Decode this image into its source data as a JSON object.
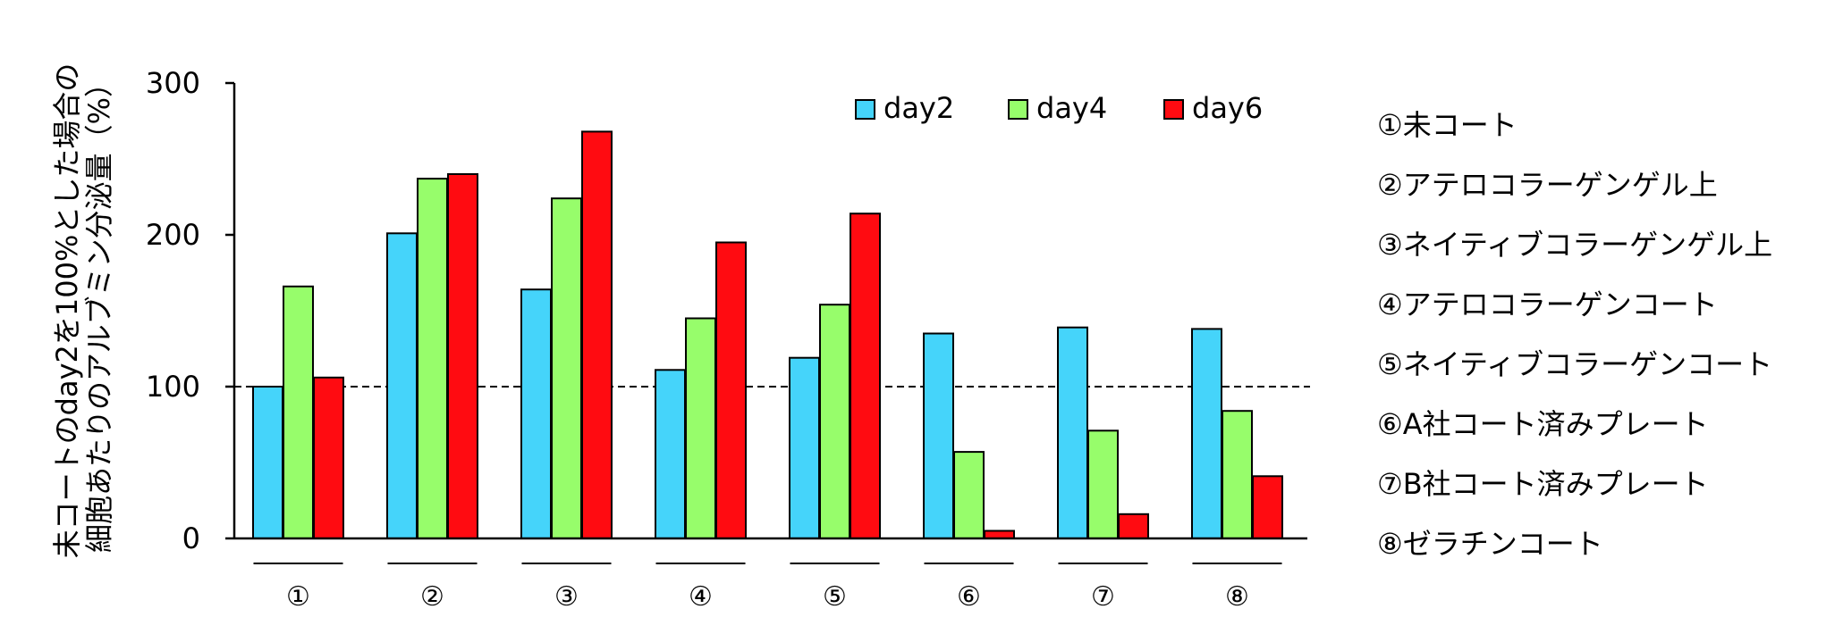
{
  "chart_data": {
    "type": "bar",
    "ylabel_lines": [
      "未コートのday2を100%とした場合の",
      "細胞あたりのアルブミン分泌量（%）"
    ],
    "ylim": [
      0,
      300
    ],
    "yticks": [
      0,
      100,
      200,
      300
    ],
    "reference_line": 100,
    "categories": [
      "①",
      "②",
      "③",
      "④",
      "⑤",
      "⑥",
      "⑦",
      "⑧"
    ],
    "series": [
      {
        "name": "day2",
        "color": "#45d4fa",
        "values": [
          100,
          201,
          164,
          111,
          119,
          135,
          139,
          138
        ]
      },
      {
        "name": "day4",
        "color": "#97fd6b",
        "values": [
          166,
          237,
          224,
          145,
          154,
          57,
          71,
          84
        ]
      },
      {
        "name": "day6",
        "color": "#ff0b11",
        "values": [
          106,
          240,
          268,
          195,
          214,
          5,
          16,
          41
        ]
      }
    ],
    "legend_position": "top-right",
    "grid": false,
    "category_descriptions": [
      "①未コート",
      "②アテロコラーゲンゲル上",
      "③ネイティブコラーゲンゲル上",
      "④アテロコラーゲンコート",
      "⑤ネイティブコラーゲンコート",
      "⑥A社コート済みプレート",
      "⑦B社コート済みプレート",
      "⑧ゼラチンコート"
    ]
  }
}
